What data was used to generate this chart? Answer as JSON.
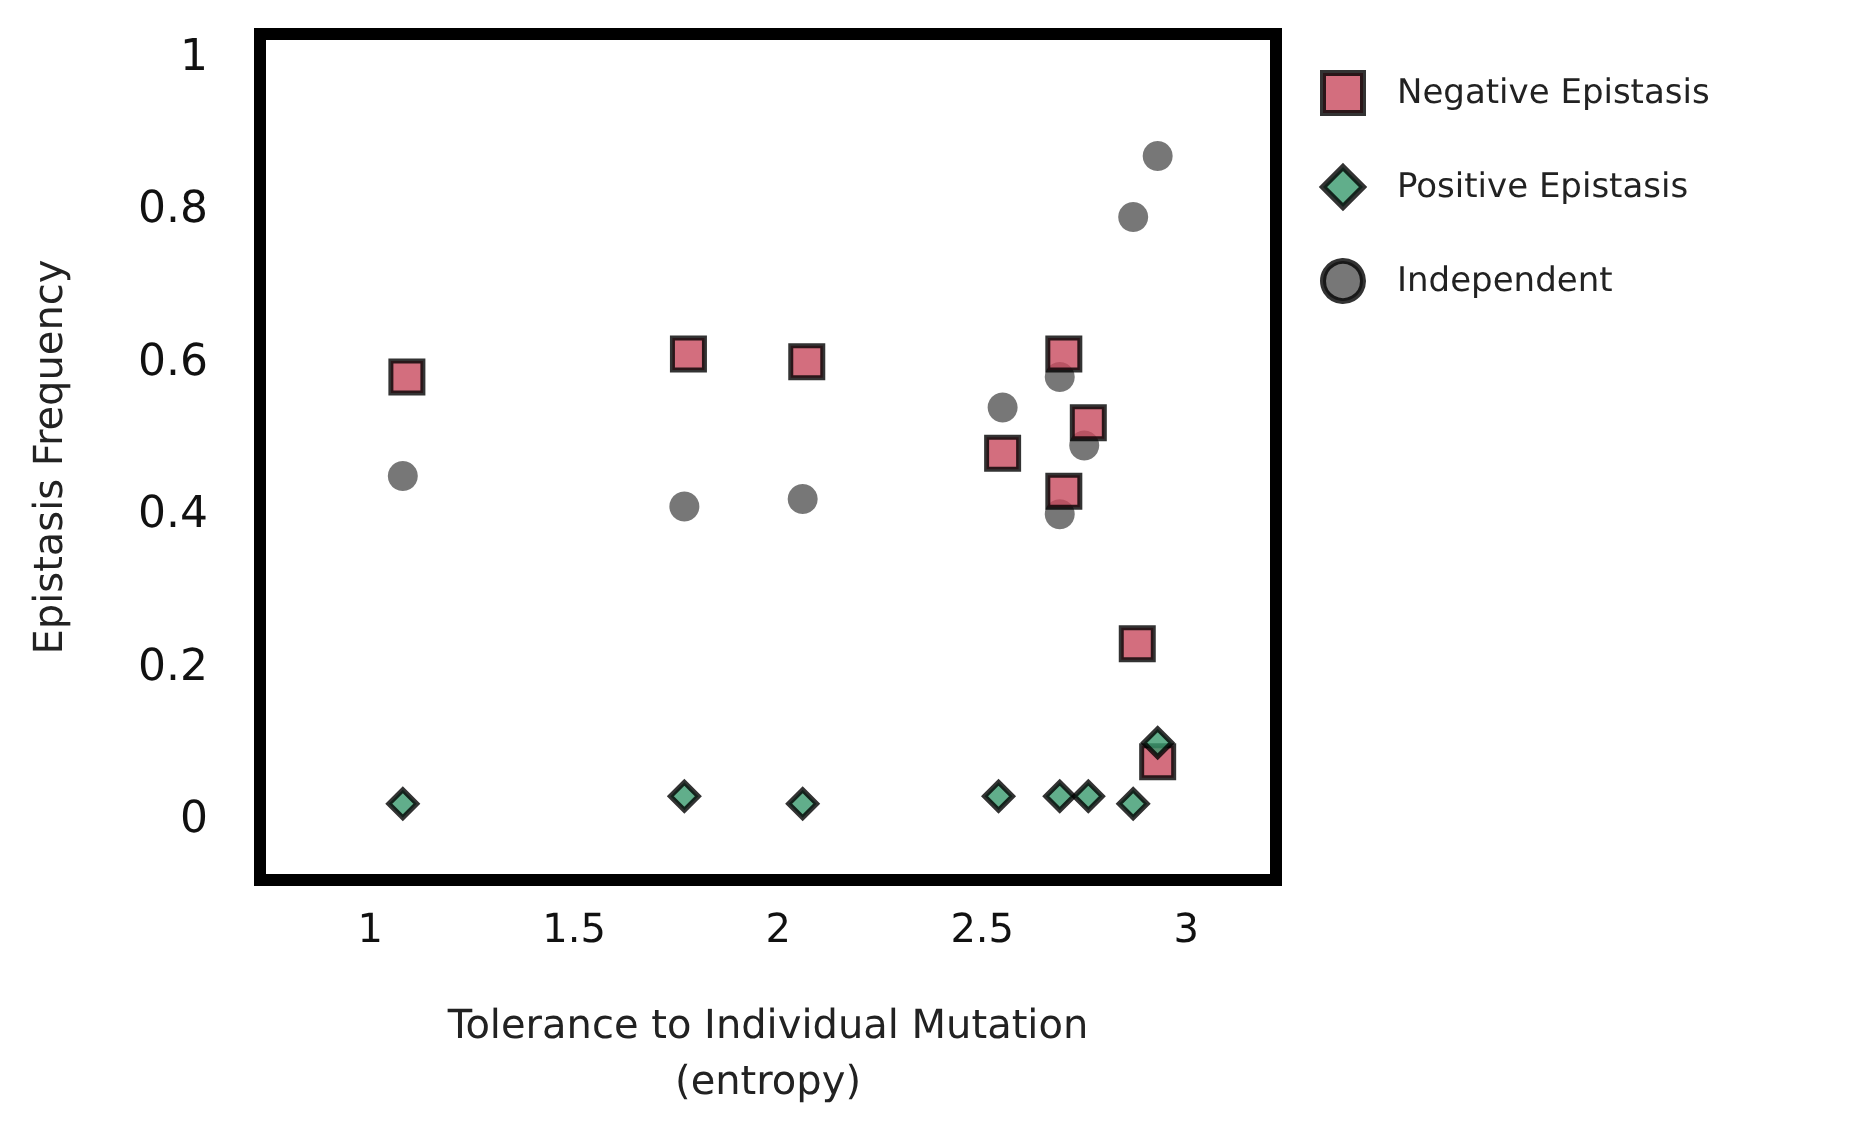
{
  "chart_data": {
    "type": "scatter",
    "xlabel": "Tolerance to Individual Mutation\n(entropy)",
    "ylabel": "Epistasis Frequency",
    "xlim": [
      0.73,
      3.22
    ],
    "xticks": [
      1,
      1.5,
      2,
      2.5,
      3
    ],
    "ylim": [
      -0.08,
      1.03
    ],
    "yticks": [
      0,
      0.2,
      0.4,
      0.6,
      0.8,
      1
    ],
    "grid": false,
    "legend": "top right",
    "series": [
      {
        "name": "Negative Epistasis",
        "color": "#c84a5e",
        "marker": "square",
        "x": [
          1.09,
          1.78,
          2.07,
          2.55,
          2.7,
          2.7,
          2.76,
          2.88,
          2.93
        ],
        "values": [
          0.58,
          0.61,
          0.6,
          0.48,
          0.61,
          0.43,
          0.52,
          0.23,
          0.075
        ]
      },
      {
        "name": "Positive Epistasis",
        "color": "#3a9a6e",
        "marker": "diamond",
        "x": [
          1.08,
          1.77,
          2.06,
          2.54,
          2.69,
          2.76,
          2.87,
          2.93
        ],
        "values": [
          0.02,
          0.03,
          0.02,
          0.03,
          0.03,
          0.03,
          0.02,
          0.1
        ]
      },
      {
        "name": "Independent",
        "color": "#555555",
        "marker": "circle",
        "x": [
          1.08,
          1.77,
          2.06,
          2.55,
          2.69,
          2.69,
          2.75,
          2.87,
          2.93
        ],
        "values": [
          0.45,
          0.41,
          0.42,
          0.54,
          0.58,
          0.4,
          0.49,
          0.79,
          0.87
        ]
      }
    ]
  }
}
